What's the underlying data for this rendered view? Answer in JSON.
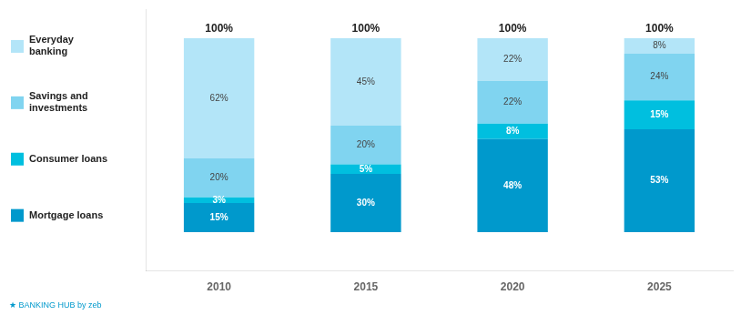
{
  "chart_data": {
    "type": "bar",
    "stacked": true,
    "categories": [
      "2010",
      "2015",
      "2020",
      "2025"
    ],
    "series": [
      {
        "name": "Mortgage loans",
        "color": "#0099cc",
        "values": [
          15,
          30,
          48,
          53
        ],
        "value_labels": [
          "15%",
          "30%",
          "48%",
          "53%"
        ]
      },
      {
        "name": "Consumer loans",
        "color": "#00bfdf",
        "values": [
          3,
          5,
          8,
          15
        ],
        "value_labels": [
          "3%",
          "5%",
          "8%",
          "15%"
        ]
      },
      {
        "name": "Savings and\ninvestments",
        "color": "#80d4f0",
        "values": [
          20,
          20,
          22,
          24
        ],
        "value_labels": [
          "20%",
          "20%",
          "22%",
          "24%"
        ]
      },
      {
        "name": "Everyday\nbanking",
        "color": "#b3e5f8",
        "values": [
          62,
          45,
          22,
          8
        ],
        "value_labels": [
          "62%",
          "45%",
          "22%",
          "8%"
        ]
      }
    ],
    "data_labels": true,
    "ylim": [
      -20,
      115
    ],
    "grid": false,
    "legend": "left",
    "tick_labels": "x",
    "annotations": [
      {
        "text": "100%",
        "x": "2010"
      },
      {
        "text": "100%",
        "x": "2015"
      },
      {
        "text": "100%",
        "x": "2020"
      },
      {
        "text": "100%",
        "x": "2025"
      },
      {
        "text": "★ BANKING HUB by zeb"
      }
    ]
  }
}
